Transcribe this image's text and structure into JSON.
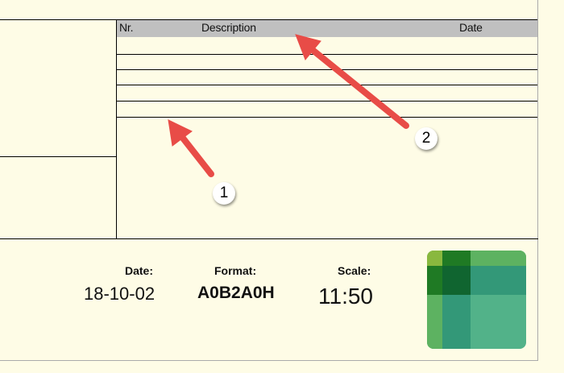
{
  "table": {
    "headers": {
      "nr": "Nr.",
      "description": "Description",
      "date": "Date"
    },
    "header_bg": "#c0c0c0"
  },
  "footer": {
    "date_label": "Date:",
    "date_value": "18-10-02",
    "format_label": "Format:",
    "format_value": "A0B2A0H",
    "scale_label": "Scale:",
    "scale_value": "11:50"
  },
  "annotations": [
    {
      "number": "1"
    },
    {
      "number": "2"
    }
  ],
  "colors": {
    "background": "#fefce6",
    "arrow": "#e84c47"
  },
  "logo": {
    "icon": "green-grid-logo"
  }
}
